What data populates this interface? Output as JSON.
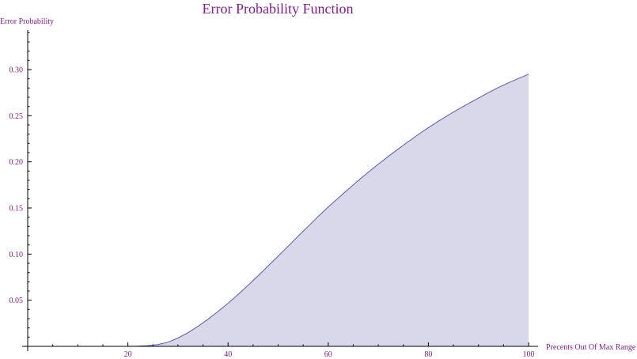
{
  "chart_data": {
    "type": "area",
    "title": "Error Probability Function",
    "xlabel": "Precents Out Of Max Range",
    "ylabel": "Error Probability",
    "xlim": [
      0,
      100
    ],
    "ylim": [
      0,
      0.34
    ],
    "x_ticks": [
      20,
      40,
      60,
      80,
      100
    ],
    "y_ticks": [
      0.05,
      0.1,
      0.15,
      0.2,
      0.25,
      0.3
    ],
    "x_tick_labels": [
      "20",
      "40",
      "60",
      "80",
      "100"
    ],
    "y_tick_labels": [
      "0.05",
      "0.10",
      "0.15",
      "0.20",
      "0.25",
      "0.30"
    ],
    "x_minor_step": 5,
    "y_minor_step": 0.01,
    "series": [
      {
        "x": [
          0,
          20,
          22,
          24,
          26,
          28,
          30,
          32,
          34,
          36,
          38,
          40,
          42,
          44,
          46,
          48,
          50,
          52,
          54,
          56,
          58,
          60,
          62,
          64,
          66,
          68,
          70,
          72,
          74,
          76,
          78,
          80,
          82,
          84,
          86,
          88,
          90,
          92,
          94,
          96,
          98,
          100
        ],
        "y": [
          0,
          0,
          0.0002,
          0.0008,
          0.002,
          0.0045,
          0.009,
          0.0148,
          0.0217,
          0.0294,
          0.0378,
          0.0467,
          0.0562,
          0.0662,
          0.0765,
          0.0871,
          0.0978,
          0.1086,
          0.1195,
          0.1301,
          0.1408,
          0.151,
          0.1608,
          0.1703,
          0.1797,
          0.1888,
          0.1975,
          0.206,
          0.214,
          0.222,
          0.2297,
          0.2371,
          0.2441,
          0.2508,
          0.2571,
          0.2632,
          0.2691,
          0.2752,
          0.2806,
          0.2857,
          0.2904,
          0.295
        ],
        "fill_color": "#d8d8ea",
        "line_color": "#5a5aa8"
      }
    ],
    "grid": false,
    "text_color": "#7b1f80"
  }
}
